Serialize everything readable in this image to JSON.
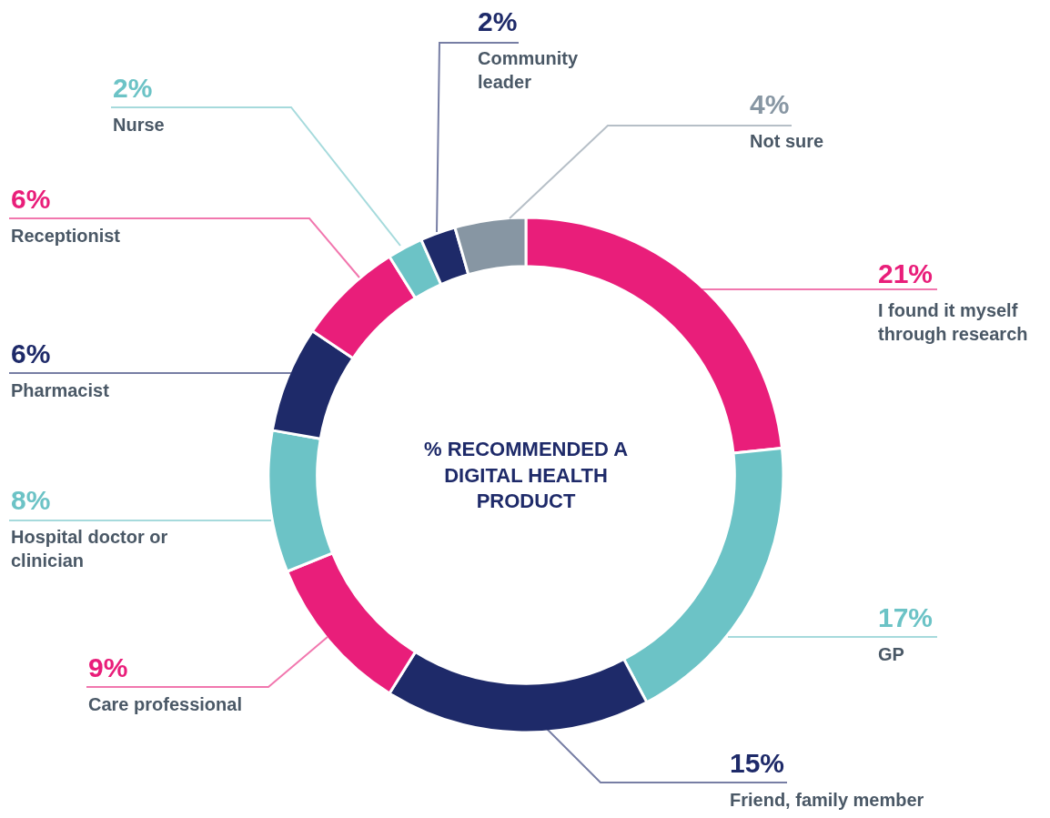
{
  "chart_data": {
    "type": "donut",
    "title": "% RECOMMENDED A DIGITAL HEALTH PRODUCT",
    "categories": [
      "I found it myself through research",
      "GP",
      "Friend, family member",
      "Care professional",
      "Hospital doctor or clinician",
      "Pharmacist",
      "Receptionist",
      "Nurse",
      "Community leader",
      "Not sure"
    ],
    "values": [
      21,
      17,
      15,
      9,
      8,
      6,
      6,
      2,
      2,
      4
    ],
    "value_labels": [
      "21%",
      "17%",
      "15%",
      "9%",
      "8%",
      "6%",
      "6%",
      "2%",
      "2%",
      "4%"
    ],
    "colors": [
      "#e91e7a",
      "#6cc3c6",
      "#1e2a69",
      "#e91e7a",
      "#6cc3c6",
      "#1e2a69",
      "#e91e7a",
      "#6cc3c6",
      "#1e2a69",
      "#8796a3"
    ],
    "legend": false
  }
}
